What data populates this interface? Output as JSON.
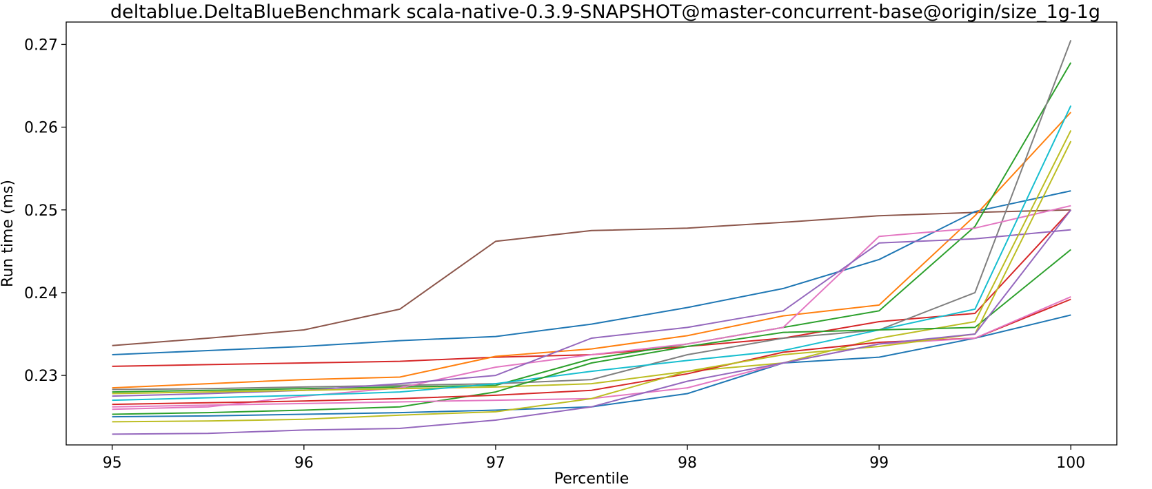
{
  "chart_data": {
    "type": "line",
    "title": "deltablue.DeltaBlueBenchmark scala-native-0.3.9-SNAPSHOT@master-concurrent-base@origin/size_1g-1g",
    "xlabel": "Percentile",
    "ylabel": "Run time (ms)",
    "xlim": [
      94.76,
      100.24
    ],
    "ylim": [
      0.2216,
      0.2727
    ],
    "xticks": [
      95,
      96,
      97,
      98,
      99,
      100
    ],
    "xtick_labels": [
      "95",
      "96",
      "97",
      "98",
      "99",
      "100"
    ],
    "yticks": [
      0.23,
      0.24,
      0.25,
      0.26,
      0.27
    ],
    "ytick_labels": [
      "0.23",
      "0.24",
      "0.25",
      "0.26",
      "0.27"
    ],
    "grid": false,
    "legend": "none",
    "x": [
      95,
      95.5,
      96,
      96.5,
      97,
      97.5,
      98,
      98.5,
      99,
      99.5,
      100
    ],
    "series": [
      {
        "color": "#8c564b",
        "values": [
          0.2336,
          0.2345,
          0.2355,
          0.238,
          0.2462,
          0.2475,
          0.2478,
          0.2485,
          0.2493,
          0.2497,
          0.25
        ]
      },
      {
        "color": "#1f77b4",
        "values": [
          0.2325,
          0.233,
          0.2335,
          0.2342,
          0.2347,
          0.2362,
          0.2382,
          0.2405,
          0.244,
          0.2498,
          0.2523
        ]
      },
      {
        "color": "#d62728",
        "values": [
          0.2311,
          0.2313,
          0.2315,
          0.2317,
          0.2322,
          0.2325,
          0.2335,
          0.2345,
          0.2365,
          0.2375,
          0.25
        ]
      },
      {
        "color": "#ff7f0e",
        "values": [
          0.2285,
          0.229,
          0.2295,
          0.2298,
          0.2323,
          0.2332,
          0.2348,
          0.2372,
          0.2385,
          0.2493,
          0.2618
        ]
      },
      {
        "color": "#2ca02c",
        "values": [
          0.228,
          0.2282,
          0.2284,
          0.2286,
          0.2288,
          0.232,
          0.2338,
          0.2358,
          0.2378,
          0.248,
          0.2678
        ]
      },
      {
        "color": "#7f7f7f",
        "values": [
          0.2283,
          0.2284,
          0.2286,
          0.2288,
          0.229,
          0.2295,
          0.2325,
          0.2345,
          0.2355,
          0.24,
          0.2705
        ]
      },
      {
        "color": "#e377c2",
        "values": [
          0.2259,
          0.2262,
          0.2275,
          0.2285,
          0.231,
          0.2325,
          0.2338,
          0.2358,
          0.2468,
          0.2478,
          0.2505
        ]
      },
      {
        "color": "#9467bd",
        "values": [
          0.2275,
          0.2278,
          0.2282,
          0.229,
          0.23,
          0.2345,
          0.2358,
          0.2378,
          0.246,
          0.2465,
          0.2476
        ]
      },
      {
        "color": "#bcbd22",
        "values": [
          0.2278,
          0.228,
          0.2282,
          0.2284,
          0.2286,
          0.229,
          0.2305,
          0.2315,
          0.2345,
          0.2365,
          0.2596
        ]
      },
      {
        "color": "#17becf",
        "values": [
          0.227,
          0.2273,
          0.2276,
          0.228,
          0.229,
          0.2305,
          0.2318,
          0.233,
          0.2355,
          0.238,
          0.2626
        ]
      },
      {
        "color": "#2ca02c",
        "values": [
          0.2253,
          0.2255,
          0.2258,
          0.2262,
          0.228,
          0.2315,
          0.2335,
          0.2352,
          0.2355,
          0.2358,
          0.2452
        ]
      },
      {
        "color": "#1f77b4",
        "values": [
          0.225,
          0.2251,
          0.2253,
          0.2255,
          0.2258,
          0.2262,
          0.2278,
          0.2315,
          0.2322,
          0.2345,
          0.2373
        ]
      },
      {
        "color": "#d62728",
        "values": [
          0.2265,
          0.2267,
          0.2269,
          0.2272,
          0.2276,
          0.2282,
          0.2302,
          0.2328,
          0.234,
          0.2345,
          0.2392
        ]
      },
      {
        "color": "#e377c2",
        "values": [
          0.2262,
          0.2264,
          0.2266,
          0.2268,
          0.227,
          0.2272,
          0.2285,
          0.2315,
          0.2338,
          0.2345,
          0.2395
        ]
      },
      {
        "color": "#bcbd22",
        "values": [
          0.2244,
          0.2245,
          0.2247,
          0.2252,
          0.2256,
          0.2272,
          0.2305,
          0.2325,
          0.2335,
          0.235,
          0.2583
        ]
      },
      {
        "color": "#9467bd",
        "values": [
          0.2229,
          0.223,
          0.2234,
          0.2236,
          0.2246,
          0.2262,
          0.2293,
          0.2315,
          0.2338,
          0.235,
          0.25
        ]
      }
    ]
  }
}
